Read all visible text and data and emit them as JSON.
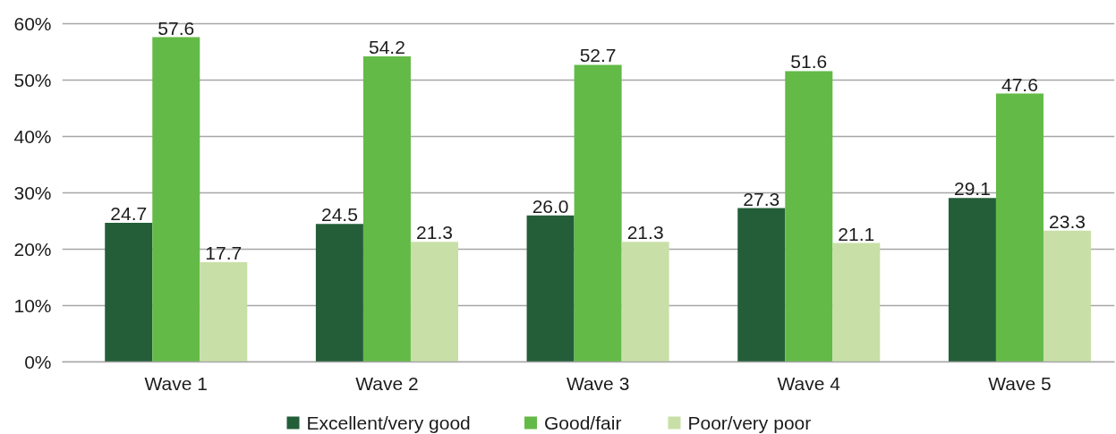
{
  "chart_data": {
    "type": "bar",
    "categories": [
      "Wave 1",
      "Wave 2",
      "Wave 3",
      "Wave 4",
      "Wave 5"
    ],
    "series": [
      {
        "name": "Excellent/very good",
        "color": "#235e39",
        "values": [
          24.7,
          24.5,
          26.0,
          27.3,
          29.1
        ],
        "value_labels": [
          "24.7",
          "24.5",
          "26.0",
          "27.3",
          "29.1"
        ]
      },
      {
        "name": "Good/fair",
        "color": "#63ba47",
        "values": [
          57.6,
          54.2,
          52.7,
          51.6,
          47.6
        ],
        "value_labels": [
          "57.6",
          "54.2",
          "52.7",
          "51.6",
          "47.6"
        ]
      },
      {
        "name": "Poor/very poor",
        "color": "#c8e0a7",
        "values": [
          17.7,
          21.3,
          21.3,
          21.1,
          23.3
        ],
        "value_labels": [
          "17.7",
          "21.3",
          "21.3",
          "21.1",
          "23.3"
        ]
      }
    ],
    "ylim": [
      0,
      60
    ],
    "yticks": [
      {
        "value": 0,
        "label": "0%"
      },
      {
        "value": 10,
        "label": "10%"
      },
      {
        "value": 20,
        "label": "20%"
      },
      {
        "value": 30,
        "label": "30%"
      },
      {
        "value": 40,
        "label": "40%"
      },
      {
        "value": 50,
        "label": "50%"
      },
      {
        "value": 60,
        "label": "60%"
      }
    ],
    "data_labels": true,
    "grid": "y",
    "legend": "bottom"
  }
}
